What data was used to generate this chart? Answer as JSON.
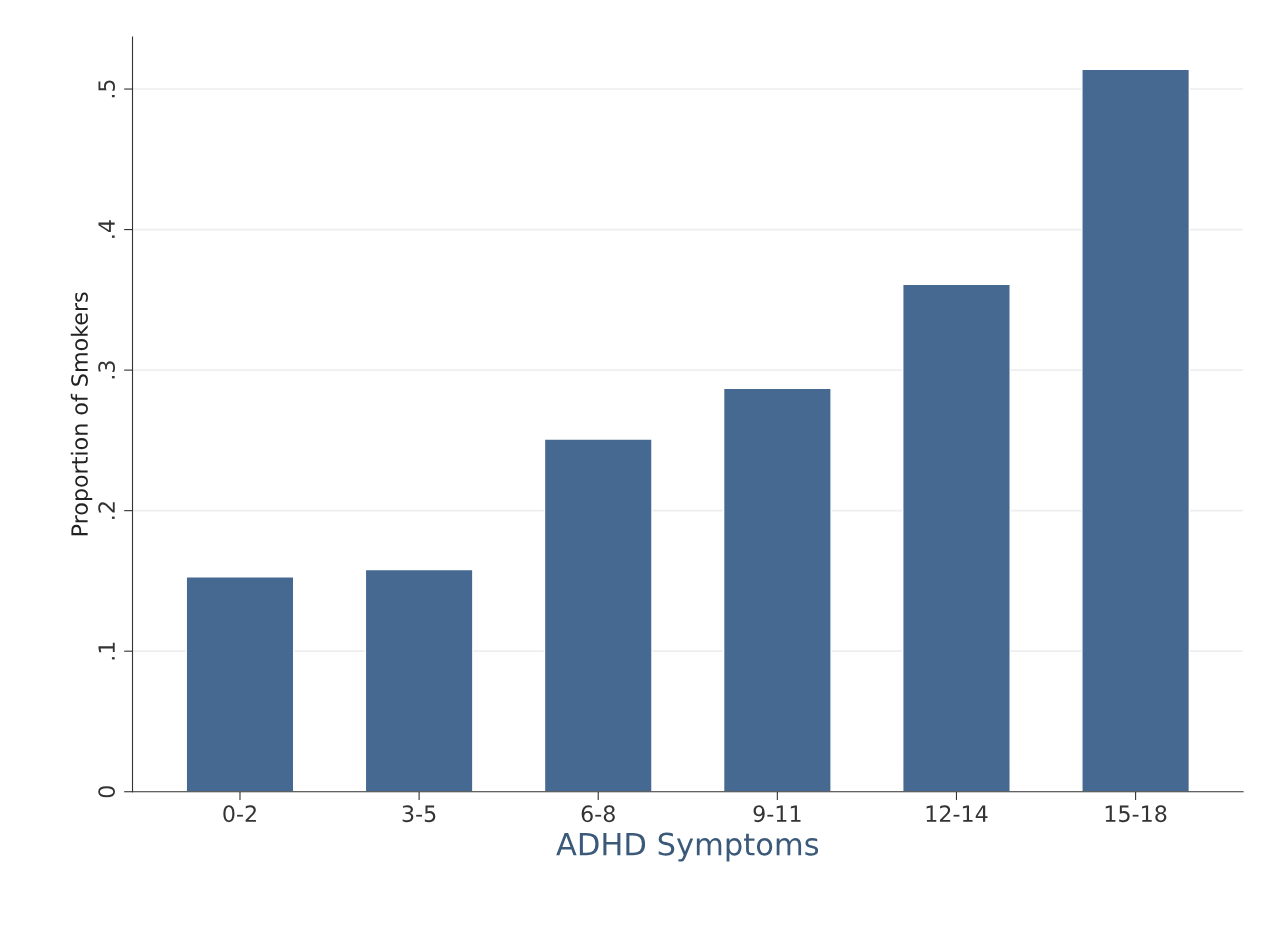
{
  "chart_data": {
    "type": "bar",
    "xlabel": "ADHD Symptoms",
    "ylabel": "Proportion of Smokers",
    "categories": [
      "0-2",
      "3-5",
      "6-8",
      "9-11",
      "12-14",
      "15-18"
    ],
    "values": [
      0.153,
      0.158,
      0.251,
      0.287,
      0.361,
      0.514
    ],
    "color": "#456990",
    "ylim": [
      0,
      0.537
    ],
    "yticks": [
      0,
      {
        "value": 0.1,
        "label": ".1"
      },
      {
        "value": 0.2,
        "label": ".2"
      },
      {
        "value": 0.3,
        "label": ".3"
      },
      {
        "value": 0.4,
        "label": ".4"
      },
      {
        "value": 0.5,
        "label": ".5"
      }
    ],
    "grid": "y"
  }
}
